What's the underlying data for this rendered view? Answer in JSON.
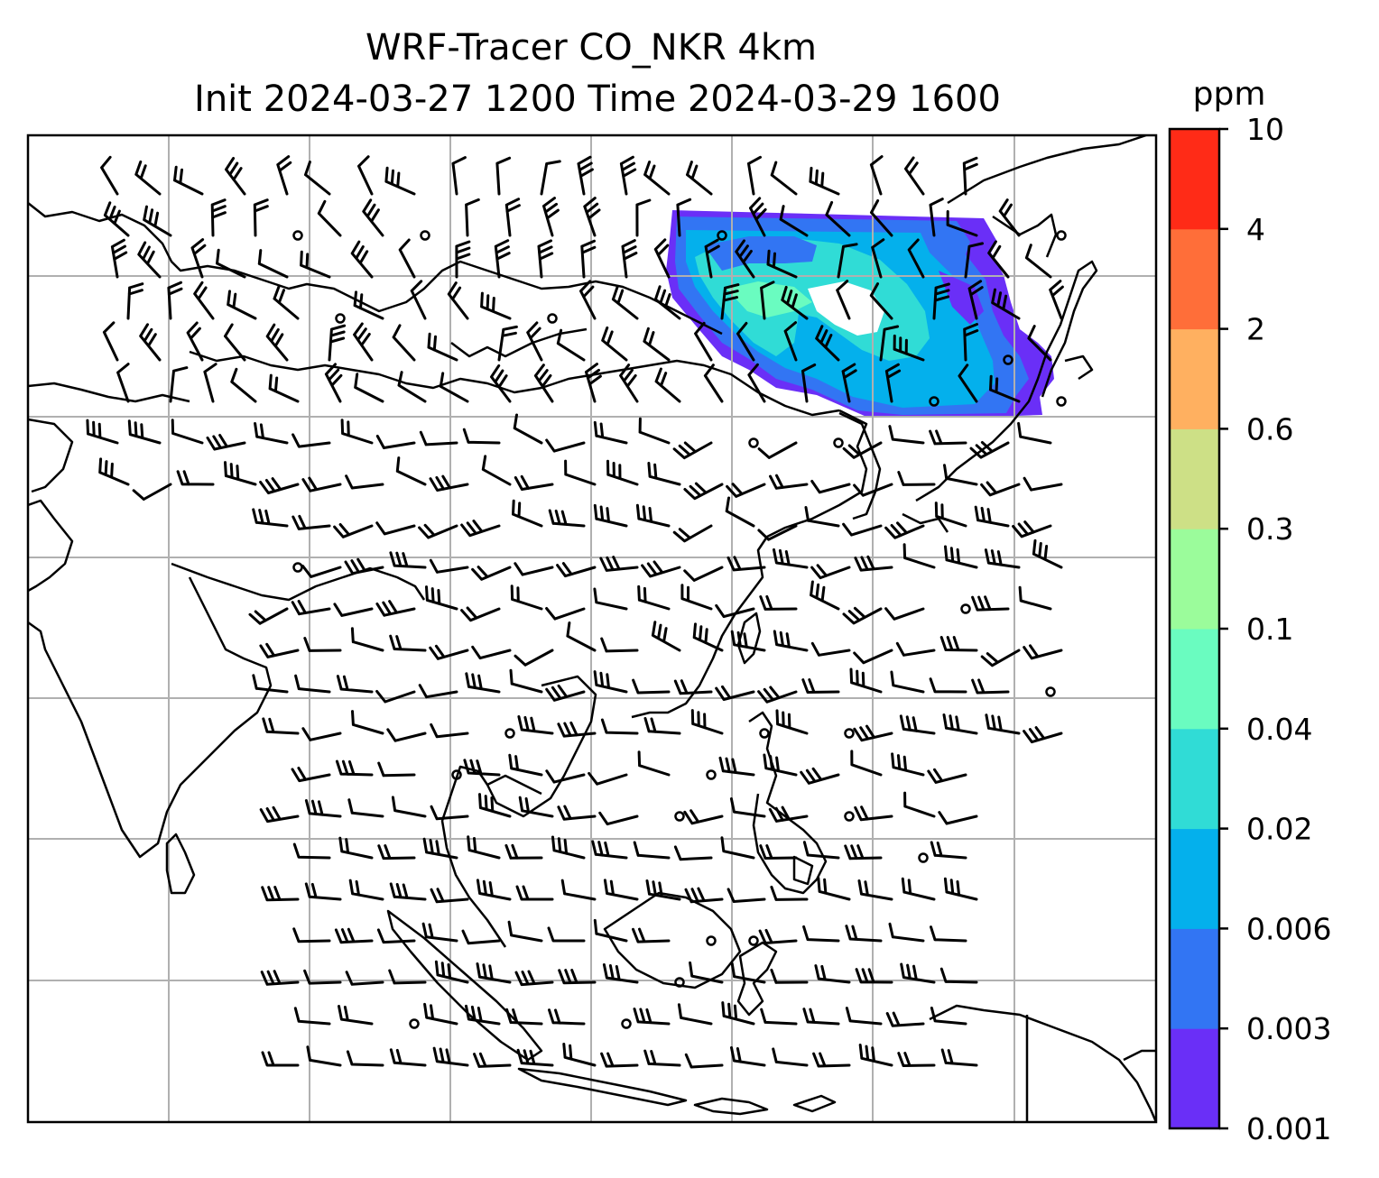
{
  "title_line1": "WRF-Tracer CO_NKR 4km",
  "title_line2": "Init 2024-03-27 1200 Time 2024-03-29 1600",
  "colorbar": {
    "unit": "ppm",
    "levels": [
      "0.001",
      "0.003",
      "0.006",
      "0.02",
      "0.04",
      "0.1",
      "0.3",
      "0.6",
      "2",
      "4",
      "10"
    ],
    "colors": [
      "#6a2ff7",
      "#3275f3",
      "#04b0ec",
      "#30dcd6",
      "#6afcc0",
      "#9bfc9b",
      "#cde086",
      "#ffb060",
      "#ff6e39",
      "#ff2b17"
    ]
  },
  "map": {
    "gridlines": true,
    "coastline_color": "#000000",
    "grid_color": "#b0b0b0",
    "tracer_plume": "dispersed over North China Plain / Korea region",
    "wind_barbs": true
  }
}
